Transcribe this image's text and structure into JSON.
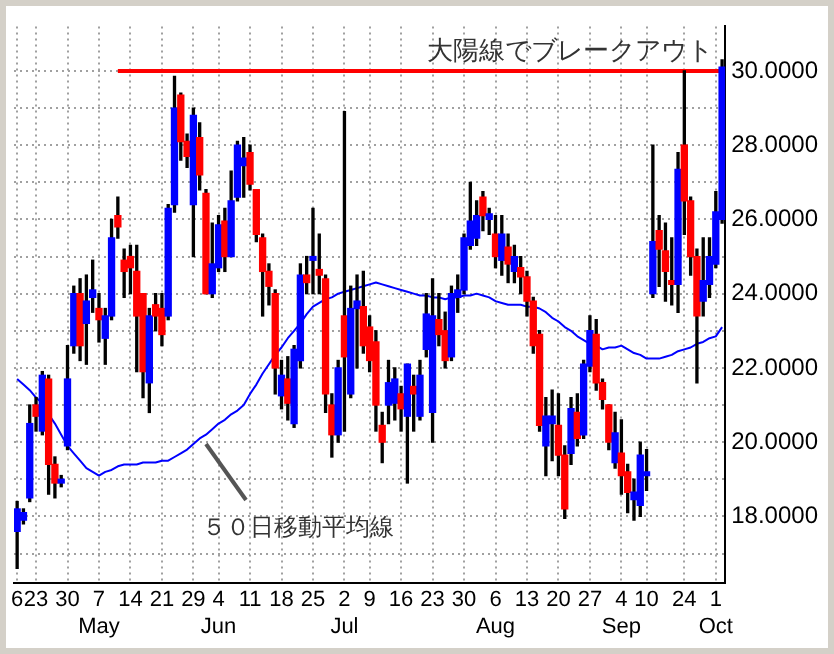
{
  "chart_data": {
    "type": "candlestick",
    "grid": true,
    "categories": [
      "6",
      null,
      null,
      "23",
      null,
      null,
      null,
      null,
      "30",
      null,
      null,
      null,
      null,
      "7\nMay",
      null,
      null,
      null,
      null,
      "14",
      null,
      null,
      null,
      null,
      "21",
      null,
      null,
      null,
      null,
      "29",
      null,
      null,
      null,
      "4\nJun",
      null,
      null,
      null,
      null,
      "11",
      null,
      null,
      null,
      null,
      "18",
      null,
      null,
      null,
      null,
      "25",
      null,
      null,
      null,
      null,
      "2\nJul",
      null,
      null,
      null,
      "9",
      null,
      null,
      null,
      null,
      "16",
      null,
      null,
      null,
      null,
      "23",
      null,
      null,
      null,
      null,
      "30",
      null,
      null,
      null,
      null,
      "6\nAug",
      null,
      null,
      null,
      null,
      "13",
      null,
      null,
      null,
      null,
      "20",
      null,
      null,
      null,
      null,
      "27",
      null,
      null,
      null,
      null,
      "4\nSep",
      null,
      null,
      null,
      "10",
      null,
      null,
      null,
      null,
      null,
      "24",
      null,
      null,
      null,
      null,
      "1\nOct",
      null
    ],
    "ohlc": [
      [
        17.6,
        18.4,
        16.6,
        18.2
      ],
      [
        17.9,
        18.2,
        17.8,
        18.1
      ],
      [
        18.5,
        21.0,
        18.4,
        20.5
      ],
      [
        21.0,
        21.2,
        20.3,
        20.7
      ],
      [
        20.3,
        21.9,
        20.2,
        21.8
      ],
      [
        21.7,
        21.8,
        18.6,
        19.4
      ],
      [
        19.4,
        19.6,
        18.5,
        18.9
      ],
      [
        18.9,
        19.1,
        18.8,
        19.0
      ],
      [
        19.9,
        22.6,
        19.8,
        21.7
      ],
      [
        22.6,
        24.2,
        22.4,
        24.0
      ],
      [
        24.0,
        24.4,
        22.2,
        22.6
      ],
      [
        23.2,
        24.5,
        22.1,
        23.8
      ],
      [
        23.9,
        24.9,
        23.5,
        24.1
      ],
      [
        23.6,
        24.0,
        22.7,
        23.3
      ],
      [
        22.8,
        23.6,
        22.1,
        23.4
      ],
      [
        23.4,
        26.0,
        23.3,
        25.5
      ],
      [
        26.1,
        26.6,
        25.5,
        25.8
      ],
      [
        24.9,
        25.2,
        23.9,
        24.6
      ],
      [
        25.0,
        25.3,
        24.0,
        24.7
      ],
      [
        24.6,
        25.3,
        21.9,
        23.4
      ],
      [
        24.0,
        24.0,
        21.2,
        21.9
      ],
      [
        21.6,
        23.6,
        20.8,
        23.4
      ],
      [
        23.7,
        24.0,
        23.0,
        23.4
      ],
      [
        23.6,
        24.0,
        22.6,
        22.9
      ],
      [
        23.4,
        26.4,
        23.3,
        26.3
      ],
      [
        26.4,
        29.85,
        26.2,
        29.0
      ],
      [
        29.35,
        29.4,
        27.6,
        28.1
      ],
      [
        28.1,
        28.3,
        27.4,
        27.7
      ],
      [
        26.4,
        29.0,
        25.0,
        28.8
      ],
      [
        28.2,
        28.6,
        26.8,
        27.2
      ],
      [
        26.7,
        26.8,
        24.0,
        24.0
      ],
      [
        24.0,
        25.9,
        23.9,
        24.8
      ],
      [
        24.7,
        26.1,
        24.6,
        25.85
      ],
      [
        25.95,
        26.3,
        24.6,
        25.0
      ],
      [
        25.0,
        27.3,
        25.0,
        26.5
      ],
      [
        26.6,
        28.1,
        26.5,
        28.0
      ],
      [
        27.45,
        28.2,
        26.6,
        27.65
      ],
      [
        27.8,
        28.0,
        26.8,
        26.95
      ],
      [
        26.8,
        26.8,
        25.4,
        25.6
      ],
      [
        25.5,
        25.6,
        23.4,
        24.6
      ],
      [
        24.6,
        24.8,
        23.7,
        24.2
      ],
      [
        24.0,
        24.1,
        21.3,
        22.0
      ],
      [
        21.25,
        22.2,
        20.9,
        21.8
      ],
      [
        21.7,
        22.3,
        20.6,
        21.05
      ],
      [
        20.5,
        22.6,
        20.4,
        22.5
      ],
      [
        22.2,
        24.8,
        22.0,
        24.5
      ],
      [
        24.5,
        25.0,
        24.0,
        24.3
      ],
      [
        24.9,
        26.3,
        24.0,
        25.0
      ],
      [
        24.65,
        25.6,
        24.0,
        24.5
      ],
      [
        24.4,
        24.5,
        20.8,
        21.3
      ],
      [
        21.0,
        21.3,
        19.6,
        20.2
      ],
      [
        20.2,
        22.2,
        20.0,
        22.0
      ],
      [
        23.4,
        28.9,
        20.3,
        22.3
      ],
      [
        21.3,
        24.2,
        21.2,
        23.6
      ],
      [
        23.6,
        24.5,
        22.0,
        23.8
      ],
      [
        23.65,
        24.6,
        22.4,
        22.6
      ],
      [
        23.1,
        23.4,
        21.9,
        22.2
      ],
      [
        22.7,
        23.0,
        20.3,
        21.0
      ],
      [
        20.45,
        20.8,
        19.45,
        20.0
      ],
      [
        21.0,
        22.2,
        20.5,
        21.6
      ],
      [
        21.05,
        22.0,
        20.6,
        21.7
      ],
      [
        21.3,
        21.5,
        20.3,
        20.9
      ],
      [
        20.7,
        22.1,
        18.9,
        22.1
      ],
      [
        21.5,
        21.8,
        20.3,
        21.3
      ],
      [
        20.7,
        22.2,
        20.6,
        21.8
      ],
      [
        22.5,
        24.0,
        22.3,
        23.45
      ],
      [
        20.8,
        24.4,
        20.0,
        23.4
      ],
      [
        23.3,
        24.0,
        22.6,
        22.9
      ],
      [
        23.0,
        23.5,
        22.0,
        22.2
      ],
      [
        22.3,
        24.2,
        22.2,
        24.0
      ],
      [
        23.9,
        24.5,
        23.5,
        24.1
      ],
      [
        24.1,
        25.6,
        24.0,
        25.5
      ],
      [
        25.3,
        27.0,
        25.2,
        25.95
      ],
      [
        25.5,
        26.5,
        25.3,
        26.1
      ],
      [
        26.6,
        26.75,
        25.7,
        26.1
      ],
      [
        26.0,
        26.3,
        25.6,
        26.15
      ],
      [
        25.6,
        26.1,
        24.7,
        25.0
      ],
      [
        24.9,
        26.1,
        24.5,
        25.6
      ],
      [
        25.25,
        25.6,
        24.3,
        24.8
      ],
      [
        24.6,
        25.3,
        24.3,
        25.0
      ],
      [
        24.7,
        25.0,
        24.0,
        24.45
      ],
      [
        24.45,
        24.6,
        23.4,
        23.8
      ],
      [
        23.8,
        23.9,
        22.4,
        22.6
      ],
      [
        22.9,
        23.0,
        20.3,
        20.45
      ],
      [
        19.9,
        21.2,
        19.1,
        20.7
      ],
      [
        20.5,
        21.4,
        19.5,
        20.7
      ],
      [
        20.45,
        21.3,
        19.1,
        19.65
      ],
      [
        19.65,
        19.9,
        17.95,
        18.2
      ],
      [
        19.7,
        21.2,
        19.4,
        20.9
      ],
      [
        20.8,
        21.3,
        19.9,
        20.1
      ],
      [
        20.2,
        22.2,
        20.1,
        22.1
      ],
      [
        22.05,
        23.4,
        21.9,
        23.0
      ],
      [
        22.9,
        23.3,
        21.4,
        21.6
      ],
      [
        21.6,
        21.7,
        20.9,
        21.15
      ],
      [
        21.0,
        21.0,
        19.8,
        20.0
      ],
      [
        19.45,
        20.8,
        19.3,
        20.25
      ],
      [
        19.7,
        20.6,
        18.6,
        19.1
      ],
      [
        19.2,
        19.4,
        18.1,
        18.65
      ],
      [
        18.45,
        19.0,
        17.9,
        18.65
      ],
      [
        18.3,
        20.0,
        18.0,
        19.65
      ],
      [
        19.1,
        19.8,
        18.7,
        19.2
      ],
      [
        24.0,
        28.0,
        23.9,
        25.4
      ],
      [
        25.7,
        26.1,
        24.2,
        25.2
      ],
      [
        25.15,
        25.9,
        23.8,
        24.6
      ],
      [
        24.35,
        25.5,
        23.7,
        24.25
      ],
      [
        24.25,
        27.8,
        23.5,
        27.35
      ],
      [
        28.0,
        30.0,
        25.6,
        26.5
      ],
      [
        26.5,
        26.6,
        24.5,
        25.0
      ],
      [
        25.0,
        25.2,
        21.6,
        23.4
      ],
      [
        23.8,
        25.5,
        23.4,
        24.35
      ],
      [
        24.25,
        25.5,
        23.9,
        25.0
      ],
      [
        24.8,
        26.75,
        24.7,
        26.2
      ],
      [
        26.0,
        30.3,
        25.9,
        30.1
      ]
    ],
    "colors": [
      "#0000ff",
      "#0000ff",
      "#0000ff",
      "#ff0000",
      "#0000ff",
      "#ff0000",
      "#ff0000",
      "#0000ff",
      "#0000ff",
      "#0000ff",
      "#ff0000",
      "#0000ff",
      "#0000ff",
      "#ff0000",
      "#0000ff",
      "#0000ff",
      "#ff0000",
      "#ff0000",
      "#ff0000",
      "#ff0000",
      "#ff0000",
      "#0000ff",
      "#ff0000",
      "#ff0000",
      "#0000ff",
      "#0000ff",
      "#ff0000",
      "#ff0000",
      "#0000ff",
      "#ff0000",
      "#ff0000",
      "#0000ff",
      "#0000ff",
      "#ff0000",
      "#0000ff",
      "#0000ff",
      "#0000ff",
      "#ff0000",
      "#ff0000",
      "#ff0000",
      "#ff0000",
      "#ff0000",
      "#0000ff",
      "#ff0000",
      "#0000ff",
      "#0000ff",
      "#ff0000",
      "#0000ff",
      "#ff0000",
      "#ff0000",
      "#ff0000",
      "#0000ff",
      "#ff0000",
      "#0000ff",
      "#0000ff",
      "#ff0000",
      "#ff0000",
      "#ff0000",
      "#ff0000",
      "#0000ff",
      "#0000ff",
      "#ff0000",
      "#0000ff",
      "#ff0000",
      "#0000ff",
      "#0000ff",
      "#0000ff",
      "#ff0000",
      "#ff0000",
      "#0000ff",
      "#0000ff",
      "#0000ff",
      "#0000ff",
      "#0000ff",
      "#ff0000",
      "#0000ff",
      "#ff0000",
      "#0000ff",
      "#ff0000",
      "#0000ff",
      "#ff0000",
      "#ff0000",
      "#ff0000",
      "#ff0000",
      "#0000ff",
      "#0000ff",
      "#ff0000",
      "#ff0000",
      "#0000ff",
      "#ff0000",
      "#0000ff",
      "#0000ff",
      "#ff0000",
      "#ff0000",
      "#ff0000",
      "#0000ff",
      "#ff0000",
      "#ff0000",
      "#0000ff",
      "#0000ff",
      "#0000ff",
      "#0000ff",
      "#ff0000",
      "#ff0000",
      "#ff0000",
      "#0000ff",
      "#ff0000",
      "#ff0000",
      "#ff0000",
      "#0000ff",
      "#0000ff",
      "#0000ff",
      "#0000ff"
    ],
    "series": [
      {
        "type": "line",
        "color": "#0000ff",
        "values": [
          21.7,
          21.55,
          21.4,
          21.2,
          21.05,
          20.75,
          20.5,
          20.2,
          19.9,
          19.7,
          19.5,
          19.3,
          19.2,
          19.1,
          19.2,
          19.25,
          19.35,
          19.4,
          19.4,
          19.4,
          19.45,
          19.45,
          19.45,
          19.5,
          19.5,
          19.6,
          19.7,
          19.8,
          19.95,
          20.1,
          20.2,
          20.35,
          20.5,
          20.6,
          20.75,
          20.85,
          21.0,
          21.3,
          21.55,
          21.85,
          22.1,
          22.35,
          22.55,
          22.8,
          23.0,
          23.2,
          23.45,
          23.65,
          23.75,
          23.85,
          23.9,
          24.0,
          24.05,
          24.1,
          24.15,
          24.2,
          24.25,
          24.3,
          24.25,
          24.2,
          24.15,
          24.1,
          24.05,
          24.0,
          23.95,
          23.95,
          23.9,
          23.9,
          23.85,
          23.9,
          23.9,
          23.95,
          23.95,
          24.0,
          23.95,
          23.9,
          23.8,
          23.75,
          23.7,
          23.7,
          23.7,
          23.65,
          23.65,
          23.6,
          23.5,
          23.35,
          23.25,
          23.1,
          23.0,
          22.85,
          22.75,
          22.65,
          22.6,
          22.5,
          22.55,
          22.55,
          22.6,
          22.5,
          22.4,
          22.35,
          22.25,
          22.25,
          22.25,
          22.3,
          22.35,
          22.45,
          22.5,
          22.55,
          22.65,
          22.7,
          22.8,
          22.85,
          23.1
        ]
      },
      {
        "type": "line",
        "color": "#ff0000",
        "values": [
          null,
          null,
          null,
          null,
          null,
          null,
          null,
          null,
          null,
          null,
          null,
          null,
          null,
          null,
          null,
          null,
          30,
          30,
          30,
          30,
          30,
          30,
          30,
          30,
          30,
          30,
          30,
          30,
          30,
          30,
          30,
          30,
          30,
          30,
          30,
          30,
          30,
          30,
          30,
          30,
          30,
          30,
          30,
          30,
          30,
          30,
          30,
          30,
          30,
          30,
          30,
          30,
          30,
          30,
          30,
          30,
          30,
          30,
          30,
          30,
          30,
          30,
          30,
          30,
          30,
          30,
          30,
          30,
          30,
          30,
          30,
          30,
          30,
          30,
          30,
          30,
          30,
          30,
          30,
          30,
          30,
          30,
          30,
          30,
          30,
          30,
          30,
          30,
          30,
          30,
          30,
          30,
          30,
          30,
          30,
          30,
          30,
          30,
          30,
          30,
          30,
          30,
          30,
          30,
          30,
          30,
          30,
          30,
          30,
          30,
          30,
          30,
          30
        ]
      }
    ],
    "annotations": [
      {
        "text": "大陽線でブレークアウト",
        "y": 30
      },
      "５０日移動平均線"
    ],
    "ylim": [
      16.2,
      31.2
    ],
    "yticks": [
      {
        "value": 17,
        "label": null
      },
      {
        "value": 18,
        "label": "18.0000"
      },
      {
        "value": 19,
        "label": null
      },
      {
        "value": 20,
        "label": "20.0000"
      },
      {
        "value": 21,
        "label": null
      },
      {
        "value": 22,
        "label": "22.0000"
      },
      {
        "value": 23,
        "label": null
      },
      {
        "value": 24,
        "label": "24.0000"
      },
      {
        "value": 25,
        "label": null
      },
      {
        "value": 26,
        "label": "26.0000"
      },
      {
        "value": 27,
        "label": null
      },
      {
        "value": 28,
        "label": "28.0000"
      },
      {
        "value": 29,
        "label": null
      },
      {
        "value": 30,
        "label": "30.0000"
      }
    ]
  }
}
